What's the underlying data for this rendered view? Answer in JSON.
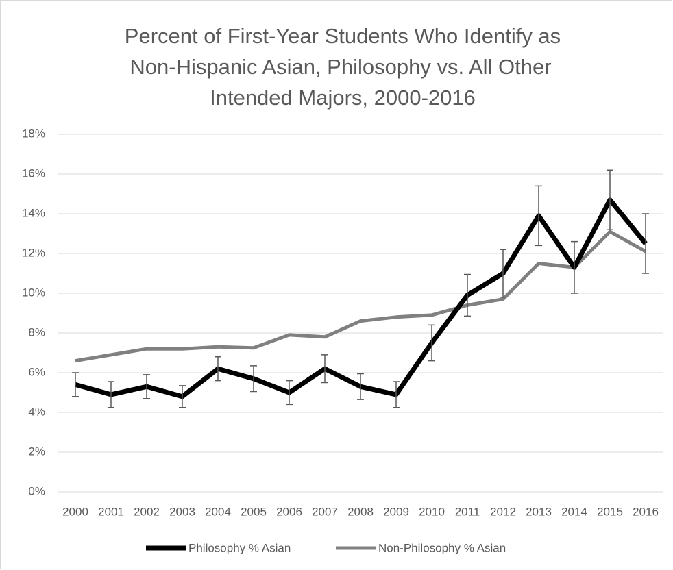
{
  "chart_data": {
    "type": "line",
    "title": [
      "Percent of First-Year Students Who Identify as",
      "Non-Hispanic Asian, Philosophy vs. All Other",
      "Intended Majors, 2000-2016"
    ],
    "categories": [
      "2000",
      "2001",
      "2002",
      "2003",
      "2004",
      "2005",
      "2006",
      "2007",
      "2008",
      "2009",
      "2010",
      "2011",
      "2012",
      "2013",
      "2014",
      "2015",
      "2016"
    ],
    "series": [
      {
        "name": "Philosophy % Asian",
        "color": "#000000",
        "values": [
          5.4,
          4.9,
          5.3,
          4.8,
          6.2,
          5.7,
          5.0,
          6.2,
          5.3,
          4.9,
          7.5,
          9.9,
          11.0,
          13.9,
          11.3,
          14.7,
          12.5
        ],
        "errors": [
          0.6,
          0.65,
          0.6,
          0.55,
          0.6,
          0.65,
          0.6,
          0.7,
          0.65,
          0.65,
          0.9,
          1.05,
          1.2,
          1.5,
          1.3,
          1.5,
          1.5
        ]
      },
      {
        "name": "Non-Philosophy % Asian",
        "color": "#808080",
        "values": [
          6.6,
          6.9,
          7.2,
          7.2,
          7.3,
          7.25,
          7.9,
          7.8,
          8.6,
          8.8,
          8.9,
          9.4,
          9.7,
          11.5,
          11.3,
          13.1,
          12.1
        ]
      }
    ],
    "ylim": [
      0,
      18
    ],
    "yticks": [
      {
        "value": 0,
        "label": "0%"
      },
      {
        "value": 2,
        "label": "2%"
      },
      {
        "value": 4,
        "label": "4%"
      },
      {
        "value": 6,
        "label": "6%"
      },
      {
        "value": 8,
        "label": "8%"
      },
      {
        "value": 10,
        "label": "10%"
      },
      {
        "value": 12,
        "label": "12%"
      },
      {
        "value": 14,
        "label": "14%"
      },
      {
        "value": 16,
        "label": "16%"
      },
      {
        "value": 18,
        "label": "18%"
      }
    ],
    "grid": true,
    "legend": "bottom"
  }
}
